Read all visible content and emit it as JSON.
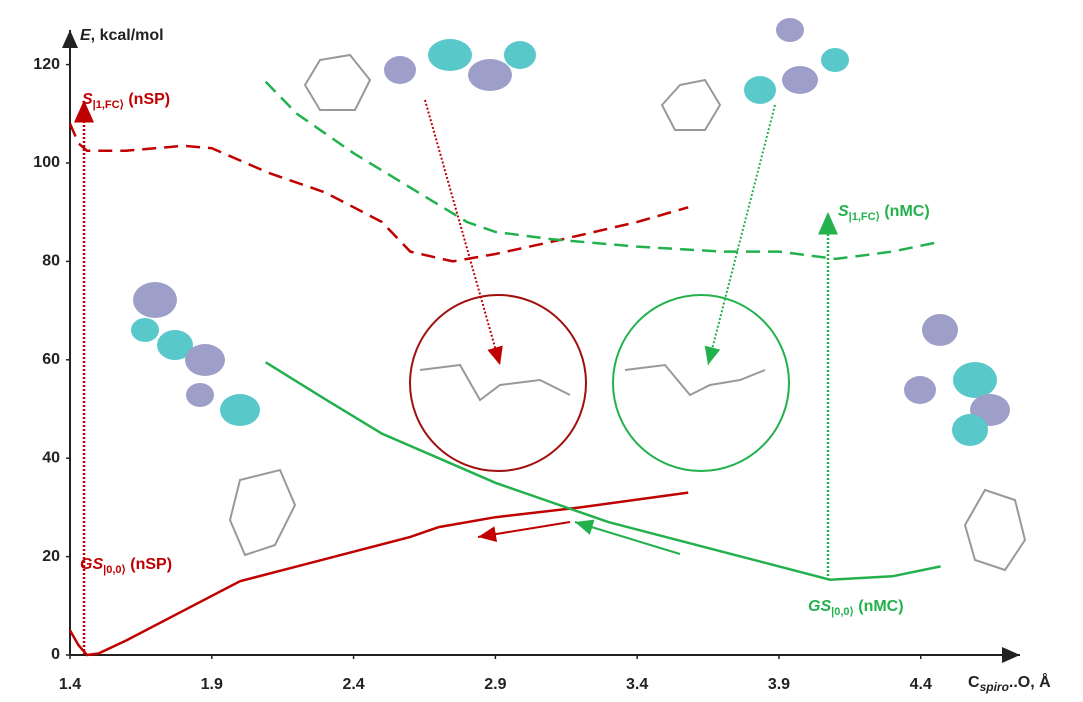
{
  "chart_data": {
    "type": "line",
    "y_label": {
      "symbol": "E",
      "text": ", kcal/mol"
    },
    "x_label": {
      "symbol": "C",
      "subscript": "spiro",
      "text": "..O, Å"
    },
    "xlim": [
      1.4,
      4.75
    ],
    "ylim": [
      0,
      125
    ],
    "xticks": [
      1.4,
      1.9,
      2.4,
      2.9,
      3.4,
      3.9,
      4.4
    ],
    "yticks": [
      0,
      20,
      40,
      60,
      80,
      100,
      120
    ],
    "series": [
      {
        "label": {
          "symbol": "GS",
          "subscript": "|0,0⟩",
          "text": " (nSP)"
        },
        "color": "#c00000",
        "dash": false,
        "x": [
          1.4,
          1.43,
          1.46,
          1.5,
          1.6,
          1.8,
          2.0,
          2.2,
          2.4,
          2.6,
          2.7,
          2.9,
          3.2,
          3.58
        ],
        "values": [
          5,
          2,
          0,
          0.3,
          3,
          9,
          15,
          18,
          21,
          24,
          26,
          28,
          30,
          33
        ]
      },
      {
        "label": {
          "symbol": "S",
          "subscript": "|1,FC⟩",
          "text": " (nSP)"
        },
        "color": "#c00000",
        "dash": true,
        "x": [
          1.4,
          1.43,
          1.46,
          1.6,
          1.8,
          1.9,
          2.1,
          2.3,
          2.5,
          2.6,
          2.75,
          2.9,
          3.1,
          3.4,
          3.58
        ],
        "values": [
          108,
          104,
          102.5,
          102.5,
          103.5,
          103,
          98,
          94,
          88,
          82,
          80,
          81.5,
          84,
          88,
          91
        ]
      },
      {
        "label": {
          "symbol": "GS",
          "subscript": "|0,0⟩",
          "text": " (nMC)"
        },
        "color": "#22b14c",
        "dash": false,
        "x": [
          2.09,
          2.3,
          2.5,
          2.7,
          2.9,
          3.1,
          3.3,
          3.5,
          3.7,
          3.9,
          4.08,
          4.3,
          4.47
        ],
        "values": [
          59.5,
          52,
          45,
          40,
          35,
          31,
          27,
          24,
          21,
          18,
          15.3,
          16,
          18
        ]
      },
      {
        "label": {
          "symbol": "S",
          "subscript": "|1,FC⟩",
          "text": " (nMC)"
        },
        "color": "#22b14c",
        "dash": true,
        "x": [
          2.09,
          2.2,
          2.4,
          2.6,
          2.8,
          2.9,
          3.1,
          3.4,
          3.7,
          3.9,
          4.1,
          4.3,
          4.47
        ],
        "values": [
          116.5,
          110,
          102,
          95,
          88,
          86,
          84.5,
          83,
          82,
          82,
          80.5,
          82,
          84
        ]
      }
    ]
  }
}
